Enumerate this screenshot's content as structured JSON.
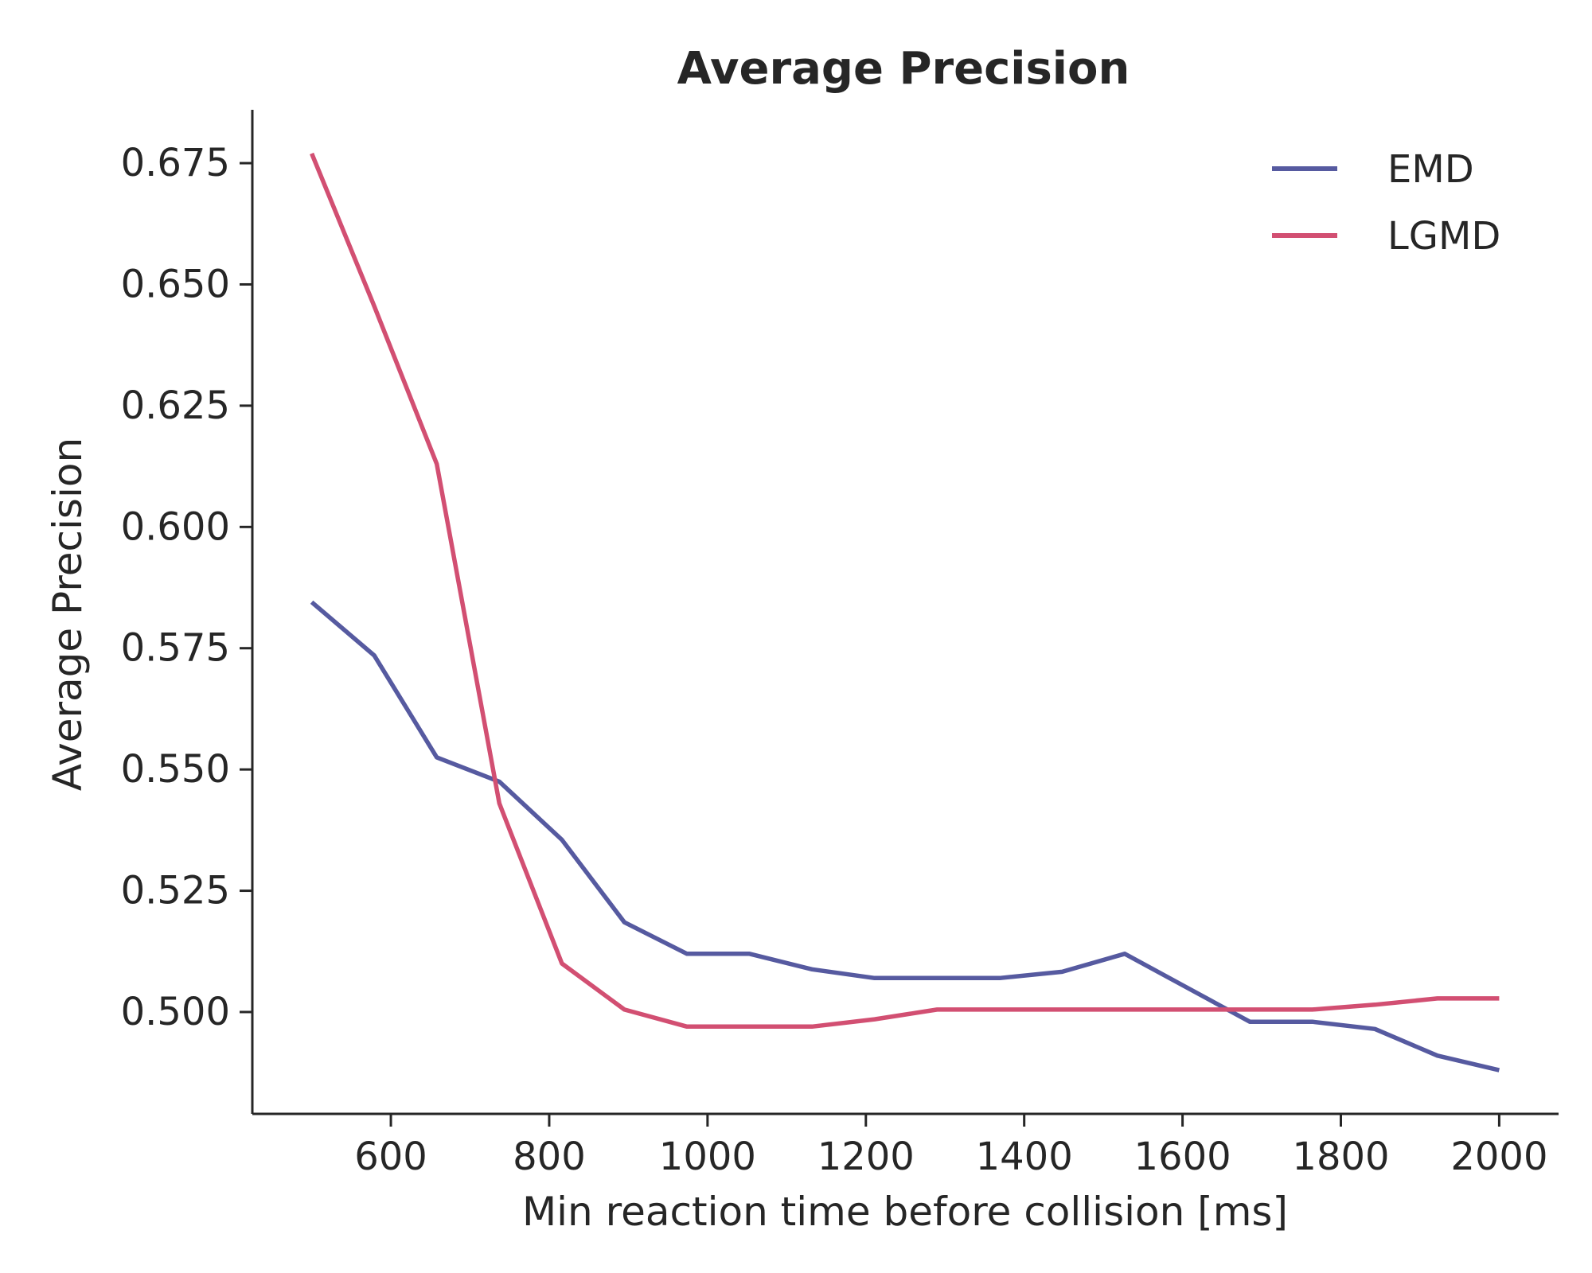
{
  "chart_data": {
    "type": "line",
    "title": "Average Precision",
    "xlabel": "Min reaction time before collision [ms]",
    "ylabel": "Average Precision",
    "xlim": [
      425,
      2075
    ],
    "ylim": [
      0.479,
      0.686
    ],
    "xticks": [
      600,
      800,
      1000,
      1200,
      1400,
      1600,
      1800,
      2000
    ],
    "yticks": [
      0.5,
      0.525,
      0.55,
      0.575,
      0.6,
      0.625,
      0.65,
      0.675
    ],
    "ytick_labels": [
      "0.500",
      "0.525",
      "0.550",
      "0.575",
      "0.600",
      "0.625",
      "0.650",
      "0.675"
    ],
    "grid": false,
    "legend_position": "top-right",
    "x": [
      500,
      579,
      658,
      737,
      816,
      895,
      974,
      1053,
      1132,
      1211,
      1290,
      1369,
      1448,
      1527,
      1606,
      1685,
      1764,
      1843,
      1922,
      2000
    ],
    "series": [
      {
        "name": "EMD",
        "color": "#565aa0",
        "values": [
          0.5845,
          0.5735,
          0.5525,
          0.5475,
          0.5355,
          0.5185,
          0.512,
          0.512,
          0.5088,
          0.507,
          0.507,
          0.507,
          0.5083,
          0.512,
          0.505,
          0.498,
          0.498,
          0.4965,
          0.491,
          0.488
        ]
      },
      {
        "name": "LGMD",
        "color": "#d24f72",
        "values": [
          0.677,
          0.6455,
          0.613,
          0.543,
          0.51,
          0.5005,
          0.497,
          0.497,
          0.497,
          0.4985,
          0.5005,
          0.5005,
          0.5005,
          0.5005,
          0.5005,
          0.5005,
          0.5005,
          0.5015,
          0.5028,
          0.5028
        ]
      }
    ]
  }
}
